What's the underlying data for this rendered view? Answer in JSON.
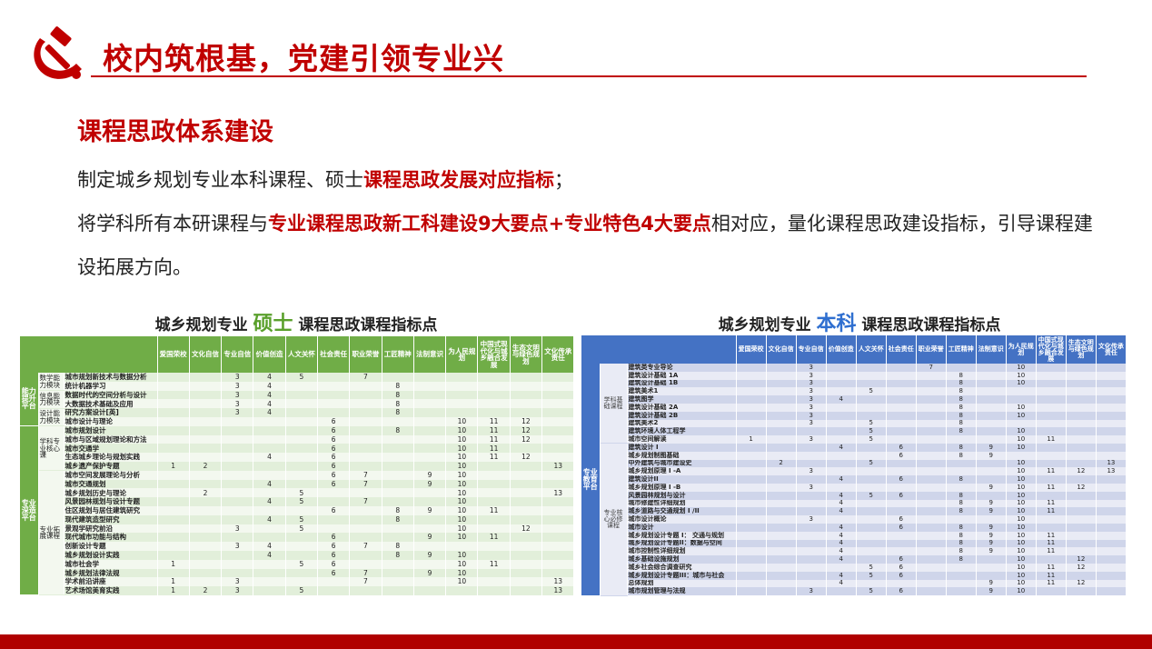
{
  "header": {
    "title": "校内筑根基，党建引领专业兴",
    "logo": "hammer-and-sickle-icon",
    "accent_color": "#c00000"
  },
  "section": {
    "title": "课程思政体系建设"
  },
  "paragraphs": {
    "p1_a": "制定城乡规划专业本科课程、硕士",
    "p1_b": "课程思政发展对应指标",
    "p1_c": "；",
    "p2_a": "将学科所有本研课程与",
    "p2_b": "专业课程思政新工科建设9大要点+专业特色4大要点",
    "p2_c": "相对应，量化课程思政建设指标，引导课程建设拓展方向。"
  },
  "left_table": {
    "title_prefix": "城乡规划专业 ",
    "title_highlight": "硕士",
    "title_suffix": " 课程思政课程指标点",
    "color": "#70ad47",
    "headers": [
      "爱国荣校",
      "文化自信",
      "专业自信",
      "价值创造",
      "人文关怀",
      "社会责任",
      "职业荣誉",
      "工匠精神",
      "法制意识",
      "为人民规划",
      "中国式现代化与城乡融合发展",
      "生态文明与绿色规划",
      "文化传承责任"
    ],
    "groups": [
      {
        "platform": "能力提升平台",
        "modules": [
          {
            "name": "数学能力模块",
            "rows": [
              {
                "course": "城市规划新技术与数据分析",
                "marks": [
                  3,
                  4,
                  5,
                  7
                ]
              },
              {
                "course": "统计机器学习",
                "marks": [
                  3,
                  4,
                  8
                ]
              }
            ]
          },
          {
            "name": "信息能力模块",
            "rows": [
              {
                "course": "数据时代的空间分析与设计",
                "marks": [
                  3,
                  4,
                  8
                ]
              },
              {
                "course": "大数据技术基础及应用",
                "marks": [
                  3,
                  4,
                  8
                ]
              }
            ]
          },
          {
            "name": "设计能力模块",
            "rows": [
              {
                "course": "研究方案设计[英]",
                "marks": [
                  3,
                  4,
                  8
                ]
              },
              {
                "course": "城市设计与理论",
                "marks": [
                  6,
                  10,
                  11,
                  12
                ]
              }
            ]
          }
        ]
      },
      {
        "platform": "专业深造平台",
        "modules": [
          {
            "name": "学科专业核心课",
            "rows": [
              {
                "course": "城市规划设计",
                "marks": [
                  6,
                  8,
                  10,
                  11,
                  12
                ]
              },
              {
                "course": "城市与区域规划理论和方法",
                "marks": [
                  6,
                  10,
                  11,
                  12
                ]
              },
              {
                "course": "城市交通学",
                "marks": [
                  6,
                  10,
                  11
                ]
              },
              {
                "course": "生态城乡理论与规划实践",
                "marks": [
                  4,
                  6,
                  10,
                  11,
                  12
                ]
              },
              {
                "course": "城乡遗产保护专题",
                "marks": [
                  1,
                  2,
                  6,
                  10,
                  13
                ]
              }
            ]
          },
          {
            "name": "专业拓展课程",
            "rows": [
              {
                "course": "城市空间发展理论与分析",
                "marks": [
                  6,
                  7,
                  9,
                  10
                ]
              },
              {
                "course": "城市交通规划",
                "marks": [
                  4,
                  6,
                  7,
                  9,
                  10
                ]
              },
              {
                "course": "城乡规划历史与理论",
                "marks": [
                  2,
                  5,
                  10,
                  13
                ]
              },
              {
                "course": "风景园林规划与设计专题",
                "marks": [
                  4,
                  5,
                  7,
                  10
                ]
              },
              {
                "course": "住区规划与居住建筑研究",
                "marks": [
                  6,
                  8,
                  9,
                  10,
                  11
                ]
              },
              {
                "course": "现代建筑造型研究",
                "marks": [
                  4,
                  5,
                  8,
                  10
                ]
              },
              {
                "course": "景观学研究前沿",
                "marks": [
                  3,
                  5,
                  10,
                  12
                ]
              },
              {
                "course": "现代城市功能与结构",
                "marks": [
                  6,
                  9,
                  10,
                  11
                ]
              },
              {
                "course": "创新设计专题",
                "marks": [
                  3,
                  4,
                  6,
                  7,
                  8
                ]
              },
              {
                "course": "城乡规划设计实践",
                "marks": [
                  4,
                  6,
                  8,
                  9,
                  10
                ]
              },
              {
                "course": "城市社会学",
                "marks": [
                  1,
                  5,
                  6,
                  10,
                  11
                ]
              },
              {
                "course": "城乡规划法律法规",
                "marks": [
                  6,
                  7,
                  9,
                  10
                ]
              },
              {
                "course": "学术前沿讲座",
                "marks": [
                  1,
                  3,
                  7,
                  10,
                  13
                ]
              },
              {
                "course": "艺术场馆美育实践",
                "marks": [
                  1,
                  2,
                  3,
                  5,
                  13
                ]
              }
            ]
          }
        ]
      }
    ]
  },
  "right_table": {
    "title_prefix": "城乡规划专业 ",
    "title_highlight": "本科",
    "title_suffix": " 课程思政课程指标点",
    "color": "#4472c4",
    "headers": [
      "爱国荣校",
      "文化自信",
      "专业自信",
      "价值创造",
      "人文关怀",
      "社会责任",
      "职业荣誉",
      "工匠精神",
      "法制意识",
      "为人民规划",
      "中国式现代化与城乡融合发展",
      "生态文明与绿色规划",
      "文化传承责任"
    ],
    "groups": [
      {
        "platform": "专业教育平台",
        "modules": [
          {
            "name": "学科基础课程",
            "rows": [
              {
                "course": "建筑类专业导论",
                "marks": [
                  3,
                  7,
                  10
                ]
              },
              {
                "course": "建筑设计基础 1A",
                "marks": [
                  3,
                  8,
                  10
                ]
              },
              {
                "course": "建筑设计基础 1B",
                "marks": [
                  3,
                  8,
                  10
                ]
              },
              {
                "course": "建筑美术1",
                "marks": [
                  3,
                  5,
                  8
                ]
              },
              {
                "course": "建筑图学",
                "marks": [
                  3,
                  4,
                  8
                ]
              },
              {
                "course": "建筑设计基础 2A",
                "marks": [
                  3,
                  8,
                  10
                ]
              },
              {
                "course": "建筑设计基础 2B",
                "marks": [
                  3,
                  8,
                  10
                ]
              },
              {
                "course": "建筑美术2",
                "marks": [
                  3,
                  5,
                  8
                ]
              },
              {
                "course": "建筑环境人体工程学",
                "marks": [
                  5,
                  8,
                  10
                ]
              },
              {
                "course": "城市空间解读",
                "marks": [
                  1,
                  3,
                  5,
                  10,
                  11
                ]
              }
            ]
          },
          {
            "name": "专业核心必修课程",
            "rows": [
              {
                "course": "建筑设计 I",
                "marks": [
                  4,
                  6,
                  8,
                  9,
                  10
                ]
              },
              {
                "course": "城乡规划制图基础",
                "marks": [
                  6,
                  8,
                  9
                ]
              },
              {
                "course": "中外建筑与城市建设史",
                "marks": [
                  2,
                  5,
                  10,
                  13
                ]
              },
              {
                "course": "城乡规划原理 I -A",
                "marks": [
                  3,
                  10,
                  11,
                  12,
                  13
                ]
              },
              {
                "course": "建筑设计II",
                "marks": [
                  4,
                  6,
                  8,
                  10
                ]
              },
              {
                "course": "城乡规划原理 I -B",
                "marks": [
                  3,
                  9,
                  10,
                  11,
                  12
                ]
              },
              {
                "course": "风景园林规划与设计",
                "marks": [
                  4,
                  5,
                  6,
                  8,
                  10
                ]
              },
              {
                "course": "城市修建性详细规划",
                "marks": [
                  4,
                  8,
                  9,
                  10,
                  11
                ]
              },
              {
                "course": "城乡道路与交通规划 I /II",
                "marks": [
                  4,
                  8,
                  9,
                  10,
                  11
                ]
              },
              {
                "course": "城市设计概论",
                "marks": [
                  3,
                  6,
                  10
                ]
              },
              {
                "course": "城市设计",
                "marks": [
                  4,
                  6,
                  8,
                  9,
                  10
                ]
              },
              {
                "course": "城乡规划设计专题 I： 交通与规划",
                "marks": [
                  4,
                  8,
                  9,
                  10,
                  11
                ]
              },
              {
                "course": "城乡规划设计专题II：数据与空间",
                "marks": [
                  4,
                  8,
                  9,
                  10,
                  11
                ]
              },
              {
                "course": "城市控制性详细规划",
                "marks": [
                  4,
                  8,
                  9,
                  10,
                  11
                ]
              },
              {
                "course": "城乡基础设施规划",
                "marks": [
                  4,
                  6,
                  8,
                  10,
                  12
                ]
              },
              {
                "course": "城乡社会综合调查研究",
                "marks": [
                  5,
                  6,
                  10,
                  11,
                  12
                ]
              },
              {
                "course": "城乡规划设计专题III：城市与社会",
                "marks": [
                  4,
                  5,
                  6,
                  10,
                  11
                ]
              },
              {
                "course": "总体规划",
                "marks": [
                  4,
                  9,
                  10,
                  11,
                  12
                ]
              },
              {
                "course": "城市规划管理与法规",
                "marks": [
                  3,
                  5,
                  6,
                  9,
                  10
                ]
              }
            ]
          }
        ]
      }
    ]
  }
}
